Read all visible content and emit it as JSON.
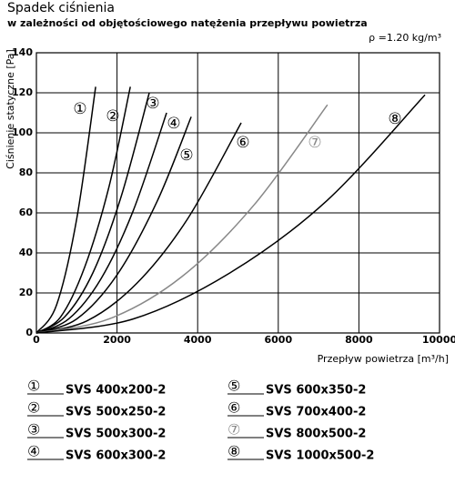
{
  "chart_data": {
    "type": "line",
    "title": "Spadek ciśnienia",
    "subtitle": "w zależności od objętościowego natężenia przepływu powietrza",
    "annotation": "ρ =1.20 kg/m³",
    "x_label": "Przepływ powietrza [m³/h]",
    "y_label": "Ciśnienie statyczne [Pa]",
    "xlim": [
      0,
      10000
    ],
    "xticks": [
      0,
      2000,
      4000,
      6000,
      8000,
      10000
    ],
    "ylim": [
      0,
      140
    ],
    "yticks": [
      0,
      20,
      40,
      60,
      80,
      100,
      120,
      140
    ],
    "grid": true,
    "series": [
      {
        "name": "SVS 400x200-2",
        "marker": "①",
        "color": "#000000",
        "x": [
          0,
          500,
          1000,
          1470
        ],
        "values": [
          0,
          14,
          57,
          123
        ]
      },
      {
        "name": "SVS 500x250-2",
        "marker": "②",
        "color": "#000000",
        "x": [
          0,
          600,
          1200,
          1800,
          2330
        ],
        "values": [
          0,
          8,
          33,
          73,
          123
        ]
      },
      {
        "name": "SVS 500x300-2",
        "marker": "③",
        "color": "#000000",
        "x": [
          0,
          700,
          1400,
          2100,
          2800
        ],
        "values": [
          0,
          8,
          30,
          68,
          120
        ]
      },
      {
        "name": "SVS 600x300-2",
        "marker": "④",
        "color": "#000000",
        "x": [
          0,
          800,
          1600,
          2400,
          3230
        ],
        "values": [
          0,
          7,
          27,
          61,
          110
        ]
      },
      {
        "name": "SVS 600x350-2",
        "marker": "⑤",
        "color": "#000000",
        "x": [
          0,
          1000,
          2000,
          3000,
          3840
        ],
        "values": [
          0,
          7,
          29,
          66,
          108
        ]
      },
      {
        "name": "SVS 700x400-2",
        "marker": "⑥",
        "color": "#000000",
        "x": [
          0,
          1250,
          2500,
          3750,
          5080
        ],
        "values": [
          0,
          6,
          25,
          57,
          105
        ]
      },
      {
        "name": "SVS 800x500-2",
        "marker": "⑦",
        "color": "#888888",
        "x": [
          0,
          1800,
          3600,
          5400,
          7220
        ],
        "values": [
          0,
          7,
          28,
          64,
          114
        ]
      },
      {
        "name": "SVS 1000x500-2",
        "marker": "⑧",
        "color": "#000000",
        "x": [
          0,
          2400,
          4800,
          7200,
          9640
        ],
        "values": [
          0,
          7,
          30,
          66,
          119
        ]
      }
    ]
  }
}
